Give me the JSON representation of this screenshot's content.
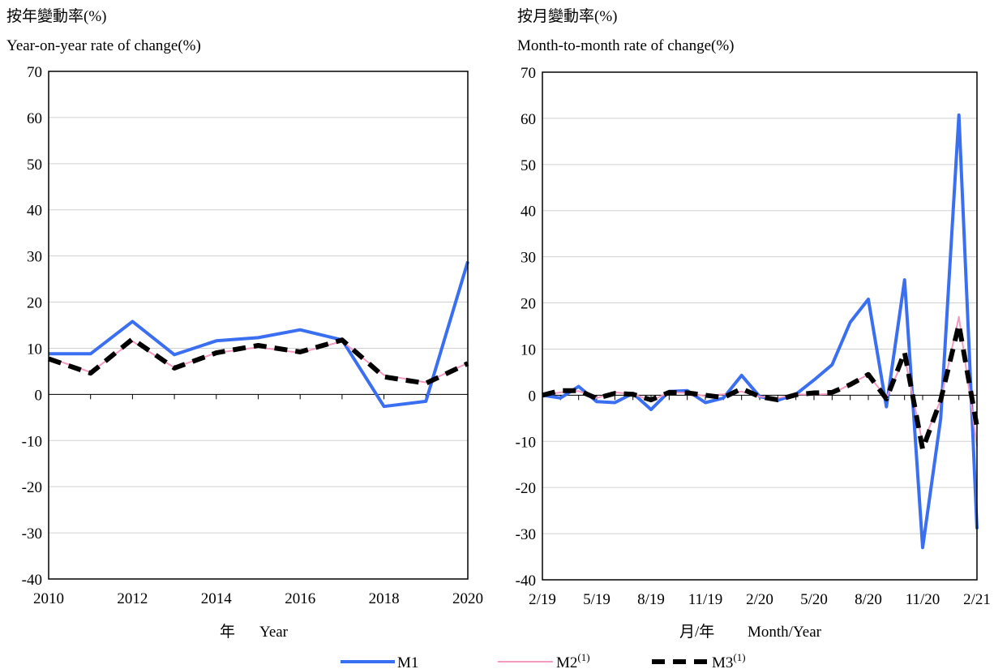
{
  "chart_data": [
    {
      "type": "line",
      "title_zh": "按年變動率(%)",
      "title": "Year-on-year rate of change(%)",
      "xlabel_zh": "年",
      "xlabel": "Year",
      "ylim": [
        -40,
        70
      ],
      "yticks": [
        "70",
        "60",
        "50",
        "40",
        "30",
        "20",
        "10",
        "0",
        "-10",
        "-20",
        "-30",
        "-40"
      ],
      "x": [
        2010,
        2011,
        2012,
        2013,
        2014,
        2015,
        2016,
        2017,
        2018,
        2019,
        2020
      ],
      "xtick_labels": [
        "2010",
        "2012",
        "2014",
        "2016",
        "2018",
        "2020"
      ],
      "series": [
        {
          "name": "M1",
          "values": [
            8.8,
            8.8,
            15.8,
            8.6,
            11.6,
            12.3,
            14.0,
            11.8,
            -2.6,
            -1.5,
            28.8
          ]
        },
        {
          "name": "M2",
          "values": [
            8.0,
            4.8,
            11.5,
            5.8,
            9.0,
            10.2,
            9.0,
            11.5,
            4.2,
            2.6,
            6.8
          ]
        },
        {
          "name": "M3",
          "values": [
            7.7,
            4.6,
            12.0,
            5.7,
            9.0,
            10.6,
            9.2,
            11.8,
            3.8,
            2.4,
            6.7
          ]
        }
      ]
    },
    {
      "type": "line",
      "title_zh": "按月變動率(%)",
      "title": "Month-to-month rate of change(%)",
      "xlabel_zh": "月/年",
      "xlabel": "Month/Year",
      "ylim": [
        -40,
        70
      ],
      "yticks": [
        "70",
        "60",
        "50",
        "40",
        "30",
        "20",
        "10",
        "0",
        "-10",
        "-20",
        "-30",
        "-40"
      ],
      "x": [
        "2/19",
        "3/19",
        "4/19",
        "5/19",
        "6/19",
        "7/19",
        "8/19",
        "9/19",
        "10/19",
        "11/19",
        "12/19",
        "1/20",
        "2/20",
        "3/20",
        "4/20",
        "5/20",
        "6/20",
        "7/20",
        "8/20",
        "9/20",
        "10/20",
        "11/20",
        "12/20",
        "1/21",
        "2/21"
      ],
      "xtick_labels": [
        "2/19",
        "5/19",
        "8/19",
        "11/19",
        "2/20",
        "5/20",
        "8/20",
        "11/20",
        "2/21"
      ],
      "series": [
        {
          "name": "M1",
          "values": [
            0.0,
            -0.6,
            1.9,
            -1.4,
            -1.6,
            0.4,
            -3.1,
            0.8,
            1.0,
            -1.6,
            -0.6,
            4.3,
            -0.3,
            -1.1,
            0.2,
            3.3,
            6.6,
            15.8,
            20.8,
            -2.5,
            25.0,
            -33.0,
            -5.0,
            60.7,
            -29.0
          ]
        },
        {
          "name": "M2",
          "values": [
            0.0,
            0.6,
            0.9,
            -0.6,
            0.6,
            0.3,
            -1.2,
            0.6,
            0.5,
            -0.2,
            0.2,
            0.8,
            -0.3,
            -0.6,
            0.2,
            0.1,
            0.3,
            2.4,
            4.5,
            -0.6,
            8.3,
            -10.5,
            -1.0,
            17.0,
            -11.0
          ]
        },
        {
          "name": "M3",
          "values": [
            0.0,
            1.0,
            1.0,
            -0.7,
            0.4,
            0.2,
            -1.0,
            0.6,
            0.5,
            0.0,
            -0.5,
            1.4,
            -0.3,
            -1.0,
            0.1,
            0.5,
            0.6,
            2.3,
            4.5,
            -0.8,
            9.3,
            -11.7,
            -1.0,
            15.3,
            -6.8
          ]
        }
      ]
    }
  ],
  "legend": {
    "m1": "M1",
    "m2": "M2",
    "m3": "M3",
    "note": "(1)",
    "colors": {
      "M1": "#3a6ff2",
      "M2": "#f49ac2",
      "M3": "#000000"
    }
  }
}
